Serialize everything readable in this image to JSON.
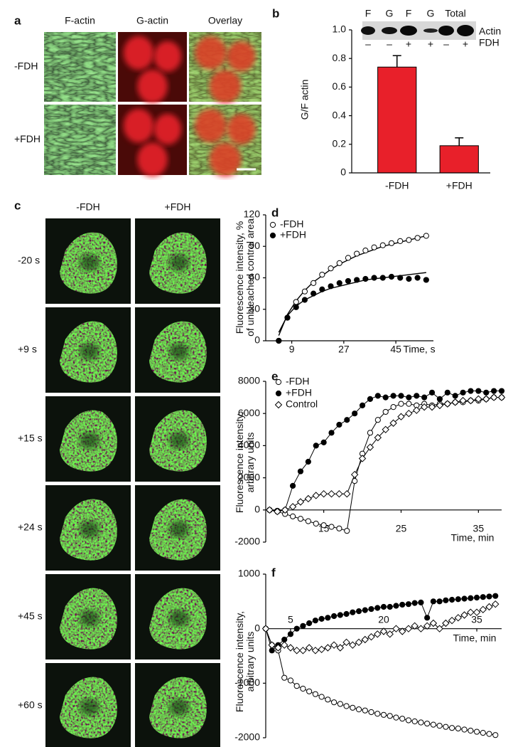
{
  "panel_labels": [
    "a",
    "b",
    "c",
    "d",
    "e",
    "f"
  ],
  "panel_a": {
    "columns": [
      "F-actin",
      "G-actin",
      "Overlay"
    ],
    "rows": [
      "-FDH",
      "+FDH"
    ]
  },
  "panel_c": {
    "columns": [
      "-FDH",
      "+FDH"
    ],
    "rows": [
      "-20 s",
      "+9 s",
      "+15 s",
      "+24 s",
      "+45 s",
      "+60 s"
    ]
  },
  "chart_data": [
    {
      "type": "bar",
      "ylabel": "G/F actin",
      "categories": [
        "-FDH",
        "+FDH"
      ],
      "values": [
        0.74,
        0.19
      ],
      "errors": [
        0.08,
        0.055
      ],
      "color": "#e8202a",
      "ylim": [
        0,
        1
      ],
      "yticks": [
        0,
        0.2,
        0.4,
        0.6,
        0.8,
        {
          "value": 1,
          "label": "1.0"
        }
      ],
      "blot": {
        "lanes": [
          "F",
          "G",
          "F",
          "G",
          "Total"
        ],
        "fdh_signs": [
          "–",
          "–",
          "+",
          "+",
          "–",
          "+"
        ],
        "row_labels": [
          "Actin",
          "FDH"
        ]
      }
    },
    {
      "type": "scatter",
      "ylabel": [
        "Fluorescence intensity, %",
        "of unbleached control area"
      ],
      "xlabel": "Time, s",
      "x": [
        4.5,
        7.5,
        10.5,
        13.5,
        16.5,
        19.5,
        22.5,
        25.5,
        28.5,
        31.5,
        34.5,
        37.5,
        40.5,
        43.5,
        46.5,
        49.5,
        52.5,
        55.5
      ],
      "series": [
        {
          "name": "-FDH",
          "marker": "open-circle",
          "values": [
            0,
            22,
            37,
            47,
            55,
            63,
            69,
            74,
            79,
            83,
            86,
            89,
            91,
            93,
            95,
            96,
            98,
            100
          ]
        },
        {
          "name": "+FDH",
          "marker": "filled-circle",
          "values": [
            0,
            22,
            32,
            39,
            45,
            49,
            52,
            55,
            57,
            58,
            59,
            60,
            60,
            61,
            60,
            59,
            60,
            58
          ]
        }
      ],
      "fits": [
        {
          "values": [
            5,
            25,
            38,
            48,
            56,
            62,
            68,
            73,
            77,
            81,
            84,
            87,
            90,
            92,
            94,
            96,
            98,
            100
          ]
        },
        {
          "values": [
            8,
            24,
            33,
            39,
            43,
            47,
            50,
            52,
            54,
            56,
            58,
            59,
            60,
            61,
            62,
            63,
            64,
            65
          ]
        }
      ],
      "xlim": [
        0,
        58
      ],
      "xticks": [
        9,
        27,
        45
      ],
      "ylim": [
        0,
        120
      ],
      "yticks": [
        0,
        30,
        60,
        90,
        120
      ],
      "legend": "top-left"
    },
    {
      "type": "line",
      "ylabel": [
        "Fluorescence intensity,",
        "arbitrary units"
      ],
      "xlabel": "Time, min",
      "x": [
        8,
        9,
        10,
        11,
        12,
        13,
        14,
        15,
        16,
        17,
        18,
        19,
        20,
        21,
        22,
        23,
        24,
        25,
        26,
        27,
        28,
        29,
        30,
        31,
        32,
        33,
        34,
        35,
        36,
        37,
        38
      ],
      "series": [
        {
          "name": "-FDH",
          "marker": "open-circle",
          "values": [
            0,
            -100,
            -250,
            -400,
            -550,
            -700,
            -850,
            -950,
            -1050,
            -1150,
            -1300,
            1800,
            3500,
            4800,
            5600,
            6100,
            6400,
            6600,
            6600,
            6500,
            6600,
            6500,
            6600,
            6600,
            6700,
            6700,
            6800,
            6800,
            6900,
            7000,
            7000
          ]
        },
        {
          "name": "+FDH",
          "marker": "filled-circle",
          "values": [
            0,
            -50,
            0,
            1500,
            2400,
            3000,
            4000,
            4200,
            4800,
            5300,
            5600,
            6000,
            6500,
            6900,
            7100,
            7000,
            7100,
            7100,
            7000,
            7100,
            7000,
            7300,
            6900,
            7300,
            7100,
            7300,
            7400,
            7400,
            7300,
            7400,
            7400
          ]
        },
        {
          "name": "Control",
          "marker": "open-diamond",
          "values": [
            0,
            -100,
            0,
            200,
            500,
            700,
            900,
            1000,
            1000,
            1000,
            1000,
            2200,
            3200,
            3900,
            4500,
            5000,
            5400,
            5800,
            6000,
            6200,
            6400,
            6400,
            6500,
            6600,
            6700,
            6800,
            6800,
            6900,
            6900,
            7000,
            7000
          ]
        }
      ],
      "xlim": [
        7.5,
        38
      ],
      "xticks": [
        15,
        25,
        35
      ],
      "ylim": [
        -2000,
        8000
      ],
      "yticks": [
        -2000,
        0,
        2000,
        4000,
        6000,
        8000
      ],
      "legend": "top-left"
    },
    {
      "type": "line",
      "ylabel": [
        "Fluorescence intensity,",
        "arbitrary units"
      ],
      "xlabel": "Time, min",
      "x": [
        1,
        2,
        3,
        4,
        5,
        6,
        7,
        8,
        9,
        10,
        11,
        12,
        13,
        14,
        15,
        16,
        17,
        18,
        19,
        20,
        21,
        22,
        23,
        24,
        25,
        26,
        27,
        28,
        29,
        30,
        31,
        32,
        33,
        34,
        35,
        36,
        37,
        38
      ],
      "series": [
        {
          "marker": "filled-circle",
          "values": [
            0,
            -400,
            -300,
            -200,
            -100,
            0,
            50,
            100,
            150,
            180,
            200,
            230,
            250,
            270,
            300,
            320,
            340,
            360,
            380,
            400,
            400,
            420,
            440,
            450,
            470,
            480,
            200,
            500,
            500,
            520,
            530,
            540,
            550,
            560,
            570,
            580,
            590,
            600
          ]
        },
        {
          "marker": "open-circle",
          "values": [
            0,
            -300,
            -400,
            -900,
            -950,
            -1050,
            -1100,
            -1150,
            -1200,
            -1250,
            -1300,
            -1350,
            -1380,
            -1420,
            -1450,
            -1480,
            -1500,
            -1530,
            -1560,
            -1580,
            -1600,
            -1630,
            -1650,
            -1680,
            -1700,
            -1720,
            -1740,
            -1760,
            -1780,
            -1800,
            -1820,
            -1830,
            -1850,
            -1870,
            -1890,
            -1910,
            -1930,
            -1950
          ]
        },
        {
          "marker": "open-diamond",
          "values": [
            0,
            -300,
            -350,
            -300,
            -350,
            -400,
            -400,
            -350,
            -400,
            -380,
            -350,
            -300,
            -350,
            -250,
            -300,
            -250,
            -200,
            -150,
            -100,
            -50,
            -100,
            0,
            -50,
            0,
            50,
            0,
            50,
            100,
            0,
            100,
            150,
            200,
            250,
            300,
            300,
            350,
            400,
            450
          ]
        }
      ],
      "xlim": [
        1,
        39
      ],
      "xticks": [
        5,
        20,
        35
      ],
      "ylim": [
        -2000,
        1000
      ],
      "yticks": [
        -2000,
        -1000,
        0,
        1000
      ]
    }
  ]
}
